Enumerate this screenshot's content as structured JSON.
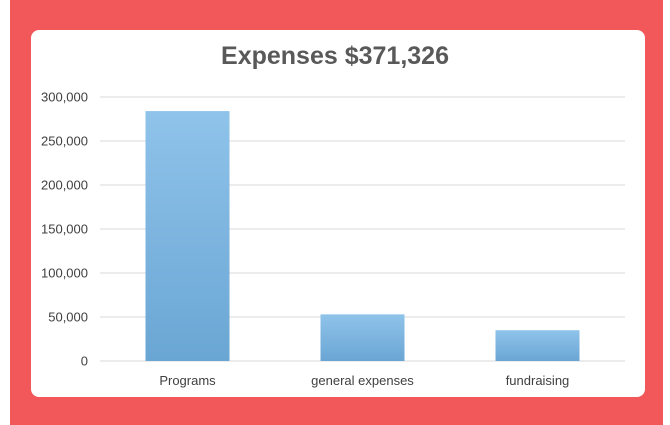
{
  "chart_data": {
    "type": "bar",
    "title": "Expenses $371,326",
    "xlabel": "",
    "ylabel": "",
    "categories": [
      "Programs",
      "general expenses",
      "fundraising"
    ],
    "values": [
      284000,
      53000,
      35000
    ],
    "ylim": [
      0,
      300000
    ],
    "yticks": [
      0,
      50000,
      100000,
      150000,
      200000,
      250000,
      300000
    ],
    "ytick_labels": [
      "0",
      "50,000",
      "100,000",
      "150,000",
      "200,000",
      "250,000",
      "300,000"
    ],
    "grid": true,
    "legend": "none",
    "bar_color_top": "#8fc3ea",
    "bar_color_bottom": "#6aa6d4"
  },
  "colors": {
    "frame": "#f2585a",
    "card": "#ffffff",
    "gridline": "#d9d9d9"
  }
}
